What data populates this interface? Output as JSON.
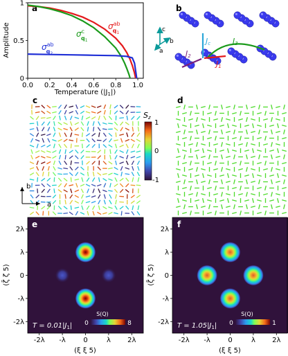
{
  "panels": {
    "a": {
      "label": "a",
      "ylabel": "Amplitude",
      "xlabel": "Temperature (|J",
      "xlabel_sub": "1",
      "xlabel_end": "|)",
      "series_labels": [
        {
          "main": "σ",
          "sup": "ab",
          "sub": "q",
          "subsub": "1",
          "color": "#e41a1c"
        },
        {
          "main": "σ",
          "sup": "c",
          "sub": "q",
          "subsub": "1",
          "color": "#1a9a1a"
        },
        {
          "main": "σ",
          "sup": "ab",
          "sub": "q",
          "subsub": "2",
          "color": "#1f2fd6"
        }
      ]
    },
    "b": {
      "label": "b",
      "axes": {
        "c": "c",
        "b": "b",
        "a": "a"
      },
      "couplings": [
        {
          "main": "J",
          "sub": "c",
          "color": "#2aa6d8"
        },
        {
          "main": "J",
          "sub": "3",
          "color": "#1a9a1a"
        },
        {
          "main": "J",
          "sub": "2",
          "color": "#7b1f7b"
        },
        {
          "main": "J",
          "sub": "1",
          "color": "#e41a1c"
        }
      ]
    },
    "c": {
      "label": "c",
      "colorbar_title": "S",
      "colorbar_title_sub": "z",
      "colorbar_ticks": [
        "1",
        "0",
        "-1"
      ]
    },
    "d": {
      "label": "d"
    },
    "in_plane_axes": {
      "b": "b",
      "a": "a"
    },
    "e": {
      "label": "e",
      "temp": "T = 0.01|J",
      "temp_sub": "1",
      "temp_end": "|",
      "sq_label": "S(Q)",
      "sq_min": "0",
      "sq_max": "8"
    },
    "f": {
      "label": "f",
      "temp": "T = 1.05|J",
      "temp_sub": "1",
      "temp_end": "|",
      "sq_label": "S(Q)",
      "sq_min": "0",
      "sq_max": "1"
    },
    "maps": {
      "ylabel": "(ζ̄ ζ 5)",
      "xlabel": "(ξ ξ 5)",
      "ticks": [
        "-2λ",
        "-λ",
        "0",
        "λ",
        "2λ"
      ]
    }
  },
  "chart_data": [
    {
      "type": "line",
      "title": "",
      "xlabel": "Temperature (|J1|)",
      "ylabel": "Amplitude",
      "xlim": [
        0.0,
        1.05
      ],
      "ylim": [
        0.0,
        1.0
      ],
      "xticks": [
        0.0,
        0.2,
        0.4,
        0.6,
        0.8,
        1.0
      ],
      "yticks": [
        0.0,
        0.5,
        1.0
      ],
      "xtick_labels": [
        "0.0",
        "0.2",
        "0.4",
        "0.6",
        "0.8",
        "1.0"
      ],
      "ytick_labels": [
        "0",
        "0.5",
        "1"
      ],
      "series": [
        {
          "name": "σab q1",
          "color": "#e41a1c",
          "x": [
            0.0,
            0.1,
            0.2,
            0.3,
            0.4,
            0.5,
            0.6,
            0.7,
            0.8,
            0.86,
            0.9,
            0.93,
            0.95,
            0.97,
            0.98
          ],
          "y": [
            0.96,
            0.95,
            0.93,
            0.9,
            0.86,
            0.81,
            0.74,
            0.65,
            0.53,
            0.43,
            0.34,
            0.25,
            0.17,
            0.07,
            0.0
          ]
        },
        {
          "name": "σc q1",
          "color": "#1a9a1a",
          "x": [
            0.0,
            0.1,
            0.2,
            0.3,
            0.4,
            0.5,
            0.6,
            0.7,
            0.8,
            0.85,
            0.88,
            0.9,
            0.92,
            0.93
          ],
          "y": [
            0.97,
            0.95,
            0.92,
            0.88,
            0.83,
            0.76,
            0.67,
            0.55,
            0.4,
            0.29,
            0.2,
            0.13,
            0.05,
            0.0
          ]
        },
        {
          "name": "σab q2",
          "color": "#1f2fd6",
          "x": [
            0.0,
            0.2,
            0.4,
            0.6,
            0.8,
            0.9,
            0.95,
            0.97,
            0.99
          ],
          "y": [
            0.32,
            0.315,
            0.31,
            0.305,
            0.3,
            0.29,
            0.27,
            0.2,
            0.0
          ]
        }
      ]
    },
    {
      "type": "heatmap",
      "name": "e",
      "xlim": [
        -2.5,
        2.5
      ],
      "ylim": [
        -2.5,
        2.5
      ],
      "peaks": [
        {
          "x": 0,
          "y": 1,
          "intensity": 8
        },
        {
          "x": 0,
          "y": -1,
          "intensity": 8
        },
        {
          "x": -1,
          "y": 0,
          "intensity": 1.2
        },
        {
          "x": 1,
          "y": 0,
          "intensity": 1.2
        }
      ],
      "cbar_range": [
        0,
        8
      ]
    },
    {
      "type": "heatmap",
      "name": "f",
      "xlim": [
        -2.5,
        2.5
      ],
      "ylim": [
        -2.5,
        2.5
      ],
      "peaks": [
        {
          "x": 0,
          "y": 1,
          "intensity": 1
        },
        {
          "x": 0,
          "y": -1,
          "intensity": 1
        },
        {
          "x": -1,
          "y": 0,
          "intensity": 1
        },
        {
          "x": 1,
          "y": 0,
          "intensity": 1
        }
      ],
      "cbar_range": [
        0,
        1
      ]
    }
  ]
}
